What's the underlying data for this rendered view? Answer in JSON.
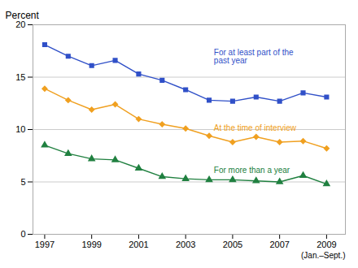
{
  "chart_data": {
    "type": "line",
    "x": [
      1997,
      1998,
      1999,
      2000,
      2001,
      2002,
      2003,
      2004,
      2005,
      2006,
      2007,
      2008,
      2009
    ],
    "series": [
      {
        "name": "For at least part of the\npast year",
        "color": "#3050c8",
        "marker": "square",
        "values": [
          18.1,
          17.0,
          16.1,
          16.6,
          15.3,
          14.7,
          13.8,
          12.8,
          12.7,
          13.1,
          12.7,
          13.5,
          13.1
        ]
      },
      {
        "name": "At the time of interview",
        "color": "#f0a020",
        "marker": "diamond",
        "values": [
          13.9,
          12.8,
          11.9,
          12.4,
          11.0,
          10.5,
          10.1,
          9.4,
          8.8,
          9.3,
          8.8,
          8.9,
          8.2
        ]
      },
      {
        "name": "For more than a year",
        "color": "#208040",
        "marker": "triangle",
        "values": [
          8.5,
          7.7,
          7.2,
          7.1,
          6.3,
          5.5,
          5.3,
          5.2,
          5.2,
          5.1,
          5.0,
          5.6,
          4.8
        ]
      }
    ],
    "annotations": [
      {
        "text": "For at least part of the\npast year",
        "x": 2004.2,
        "y": 16.3,
        "color": "#3050c8"
      },
      {
        "text": "At the time of interview",
        "x": 2004.2,
        "y": 9.85,
        "color": "#f0a020"
      },
      {
        "text": "For more than a year",
        "x": 2004.2,
        "y": 5.85,
        "color": "#208040"
      }
    ],
    "ylabel": "Percent",
    "xlabel": "(Jan.–Sept.)",
    "xlim": [
      1996.5,
      2009.8
    ],
    "xticks": [
      1997,
      1999,
      2001,
      2003,
      2005,
      2007,
      2009
    ],
    "ylim": [
      0,
      20
    ],
    "yticks": [
      0,
      5,
      10,
      15,
      20
    ],
    "grid": true
  }
}
